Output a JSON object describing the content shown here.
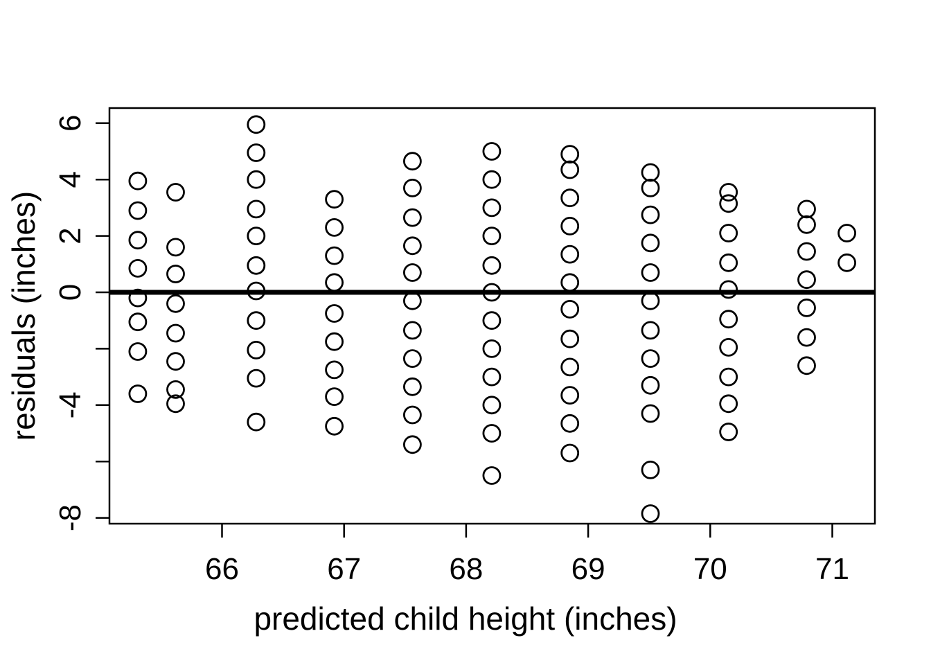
{
  "figure": {
    "background_color": "#ffffff",
    "foreground_color": "#000000"
  },
  "chart_data": {
    "type": "scatter",
    "title": "",
    "xlabel": "predicted child height (inches)",
    "ylabel": "residuals (inches)",
    "marker": "open-circle",
    "grid": "off",
    "legend": "none",
    "xlim": [
      65.08,
      71.35
    ],
    "ylim": [
      -8.23,
      6.53
    ],
    "x_ticks": [
      66,
      67,
      68,
      69,
      70,
      71
    ],
    "x_tick_labels": [
      "66",
      "67",
      "68",
      "69",
      "70",
      "71"
    ],
    "y_ticks": [
      6,
      4,
      2,
      0,
      -2,
      -4,
      -6,
      -8
    ],
    "y_tick_labels": [
      "6",
      "4",
      "2",
      "0",
      "",
      "-4",
      "",
      "-8"
    ],
    "zero_line_y": 0,
    "series": [
      {
        "x": 65.31,
        "residuals": [
          3.95,
          2.9,
          1.85,
          0.85,
          -0.2,
          -1.05,
          -2.1,
          -3.6
        ]
      },
      {
        "x": 65.62,
        "residuals": [
          3.55,
          1.6,
          0.65,
          -0.4,
          -1.45,
          -2.45,
          -3.45,
          -3.95
        ]
      },
      {
        "x": 66.28,
        "residuals": [
          5.95,
          4.95,
          4.0,
          2.95,
          2.0,
          0.95,
          0.05,
          -1.0,
          -2.05,
          -3.05,
          -4.6
        ]
      },
      {
        "x": 66.92,
        "residuals": [
          3.3,
          2.3,
          1.3,
          0.35,
          -0.75,
          -1.75,
          -2.75,
          -3.7,
          -4.75
        ]
      },
      {
        "x": 67.56,
        "residuals": [
          4.65,
          3.7,
          2.65,
          1.65,
          0.7,
          -0.3,
          -1.35,
          -2.35,
          -3.35,
          -4.35,
          -5.4
        ]
      },
      {
        "x": 68.21,
        "residuals": [
          5.0,
          4.0,
          3.0,
          2.0,
          0.95,
          0.0,
          -1.0,
          -2.0,
          -3.0,
          -4.0,
          -5.0,
          -6.5
        ]
      },
      {
        "x": 68.85,
        "residuals": [
          4.9,
          4.35,
          3.35,
          2.35,
          1.35,
          0.35,
          -0.6,
          -1.65,
          -2.65,
          -3.65,
          -4.65,
          -5.7
        ]
      },
      {
        "x": 69.51,
        "residuals": [
          4.25,
          3.7,
          2.75,
          1.75,
          0.7,
          -0.3,
          -1.35,
          -2.35,
          -3.3,
          -4.3,
          -6.3,
          -7.85
        ]
      },
      {
        "x": 70.15,
        "residuals": [
          3.55,
          3.15,
          2.1,
          1.05,
          0.1,
          -0.95,
          -1.95,
          -3.0,
          -3.95,
          -4.95
        ]
      },
      {
        "x": 70.79,
        "residuals": [
          2.95,
          2.4,
          1.45,
          0.45,
          -0.55,
          -1.6,
          -2.6
        ]
      },
      {
        "x": 71.12,
        "residuals": [
          2.1,
          1.05
        ]
      }
    ]
  }
}
